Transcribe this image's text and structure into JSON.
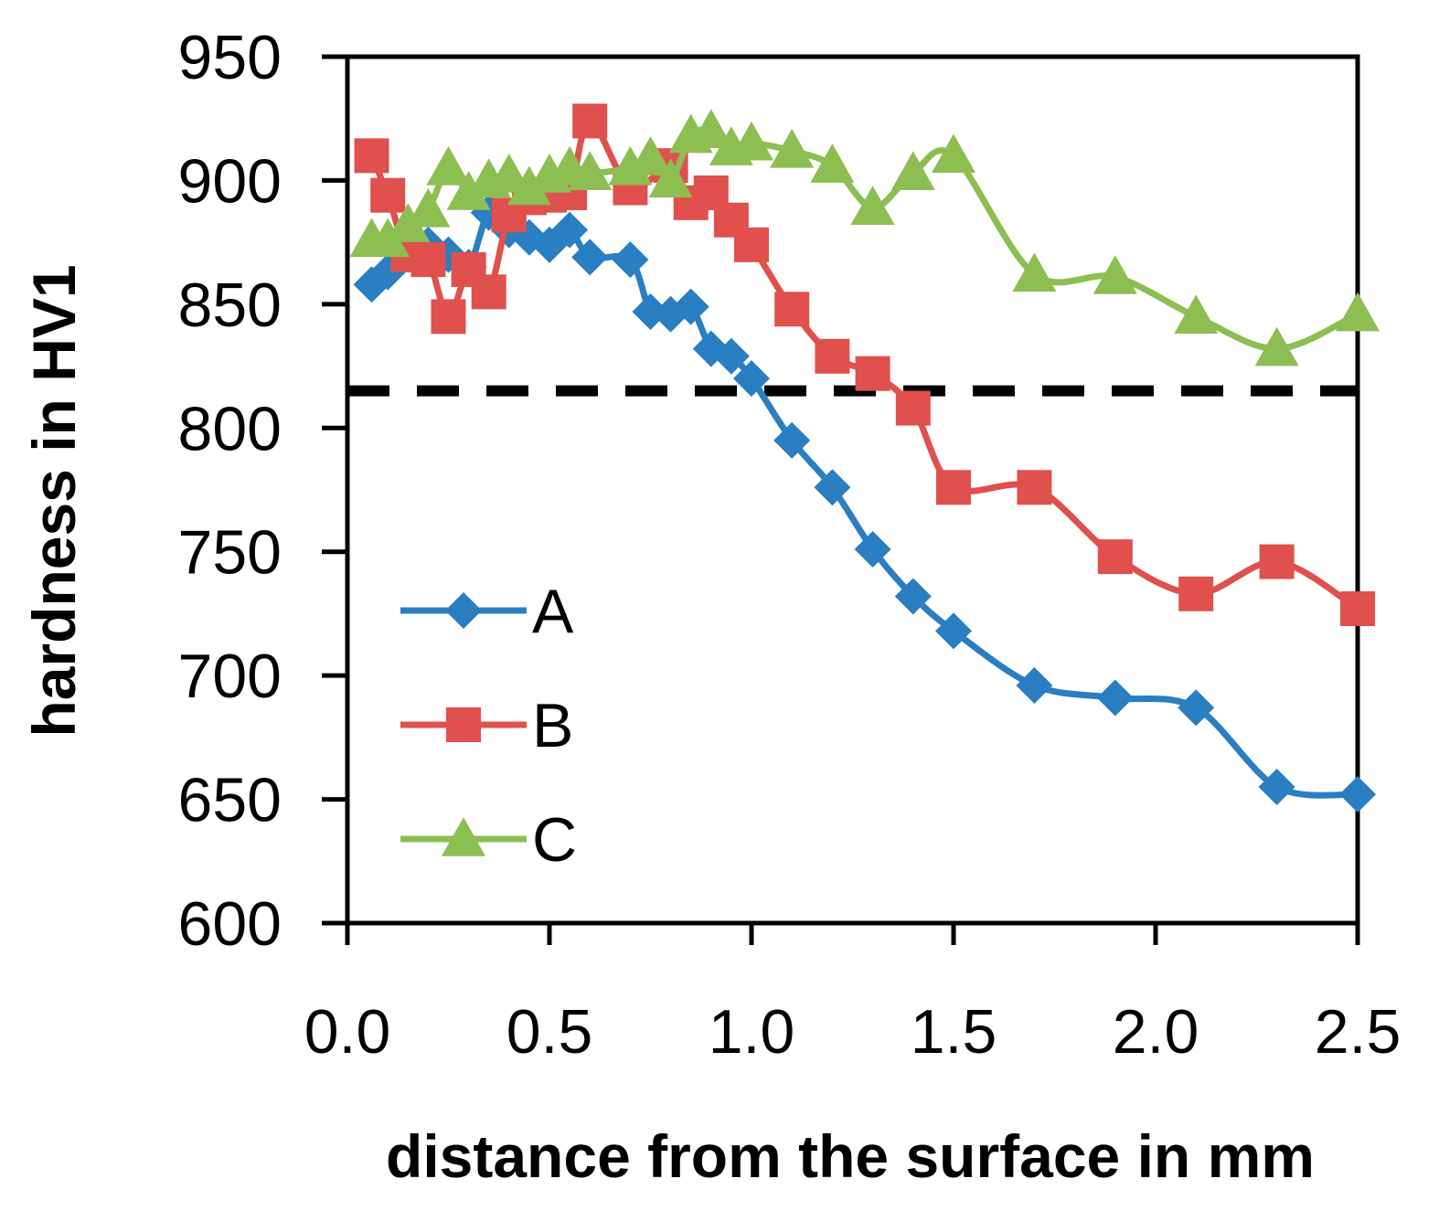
{
  "chart_data": {
    "type": "line",
    "title": "",
    "xlabel": "distance from the surface in mm",
    "ylabel": "hardness in HV1",
    "xlim": [
      0.0,
      2.5
    ],
    "ylim": [
      600,
      950
    ],
    "x_ticks": [
      "0.0",
      "0.5",
      "1.0",
      "1.5",
      "2.0",
      "2.5"
    ],
    "y_ticks": [
      "600",
      "650",
      "700",
      "750",
      "800",
      "850",
      "900",
      "950"
    ],
    "grid": false,
    "legend_position": "lower-left",
    "reference_line": {
      "y": 815,
      "style": "dashed",
      "color": "#000000"
    },
    "series": [
      {
        "name": "A",
        "marker": "diamond",
        "color": "#2A7EC2",
        "x": [
          0.06,
          0.1,
          0.15,
          0.2,
          0.25,
          0.3,
          0.35,
          0.4,
          0.45,
          0.5,
          0.55,
          0.6,
          0.7,
          0.75,
          0.8,
          0.85,
          0.9,
          0.95,
          1.0,
          1.1,
          1.2,
          1.3,
          1.4,
          1.5,
          1.7,
          1.9,
          2.1,
          2.3,
          2.5
        ],
        "y": [
          858,
          863,
          870,
          874,
          870,
          865,
          887,
          880,
          877,
          874,
          880,
          869,
          868,
          847,
          846,
          849,
          832,
          829,
          820,
          795,
          776,
          751,
          732,
          718,
          696,
          691,
          687,
          655,
          652
        ]
      },
      {
        "name": "B",
        "marker": "square",
        "color": "#E0504C",
        "x": [
          0.06,
          0.1,
          0.15,
          0.2,
          0.25,
          0.3,
          0.35,
          0.4,
          0.45,
          0.5,
          0.55,
          0.6,
          0.7,
          0.8,
          0.85,
          0.9,
          0.95,
          1.0,
          1.1,
          1.2,
          1.3,
          1.4,
          1.5,
          1.7,
          1.9,
          2.1,
          2.3,
          2.5
        ],
        "y": [
          910,
          894,
          870,
          868,
          845,
          864,
          855,
          886,
          893,
          894,
          895,
          924,
          897,
          906,
          891,
          895,
          884,
          874,
          848,
          829,
          822,
          808,
          776,
          776,
          748,
          733,
          746,
          727
        ]
      },
      {
        "name": "C",
        "marker": "triangle",
        "color": "#8DBE52",
        "x": [
          0.06,
          0.1,
          0.15,
          0.2,
          0.25,
          0.3,
          0.35,
          0.4,
          0.45,
          0.5,
          0.55,
          0.6,
          0.7,
          0.75,
          0.8,
          0.85,
          0.9,
          0.95,
          1.0,
          1.1,
          1.2,
          1.3,
          1.4,
          1.5,
          1.7,
          1.9,
          2.1,
          2.3,
          2.5
        ],
        "y": [
          876,
          876,
          882,
          888,
          905,
          895,
          900,
          902,
          897,
          902,
          905,
          903,
          905,
          909,
          900,
          918,
          920,
          913,
          915,
          912,
          906,
          889,
          903,
          910,
          862,
          861,
          845,
          832,
          846
        ]
      }
    ]
  }
}
